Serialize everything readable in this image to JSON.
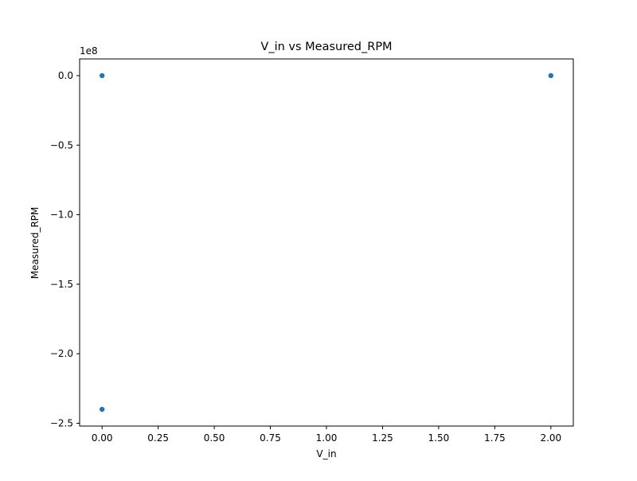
{
  "chart_data": {
    "type": "scatter",
    "title": "V_in vs Measured_RPM",
    "xlabel": "V_in",
    "ylabel": "Measured_RPM",
    "y_offset_label": "1e8",
    "xlim": [
      -0.1,
      2.1
    ],
    "ylim": [
      -252000000.0,
      12000000.0
    ],
    "xticks": [
      0.0,
      0.25,
      0.5,
      0.75,
      1.0,
      1.25,
      1.5,
      1.75,
      2.0
    ],
    "xtick_labels": [
      "0.00",
      "0.25",
      "0.50",
      "0.75",
      "1.00",
      "1.25",
      "1.50",
      "1.75",
      "2.00"
    ],
    "yticks": [
      0.0,
      -50000000.0,
      -100000000.0,
      -150000000.0,
      -200000000.0,
      -250000000.0
    ],
    "ytick_labels": [
      "0.0",
      "−0.5",
      "−1.0",
      "−1.5",
      "−2.0",
      "−2.5"
    ],
    "grid": false,
    "series": [
      {
        "color": "#1f77b4",
        "points": [
          {
            "x": 0.0,
            "y": 0
          },
          {
            "x": 0.0,
            "y": -240000000.0
          },
          {
            "x": 2.0,
            "y": 0
          }
        ]
      }
    ]
  }
}
